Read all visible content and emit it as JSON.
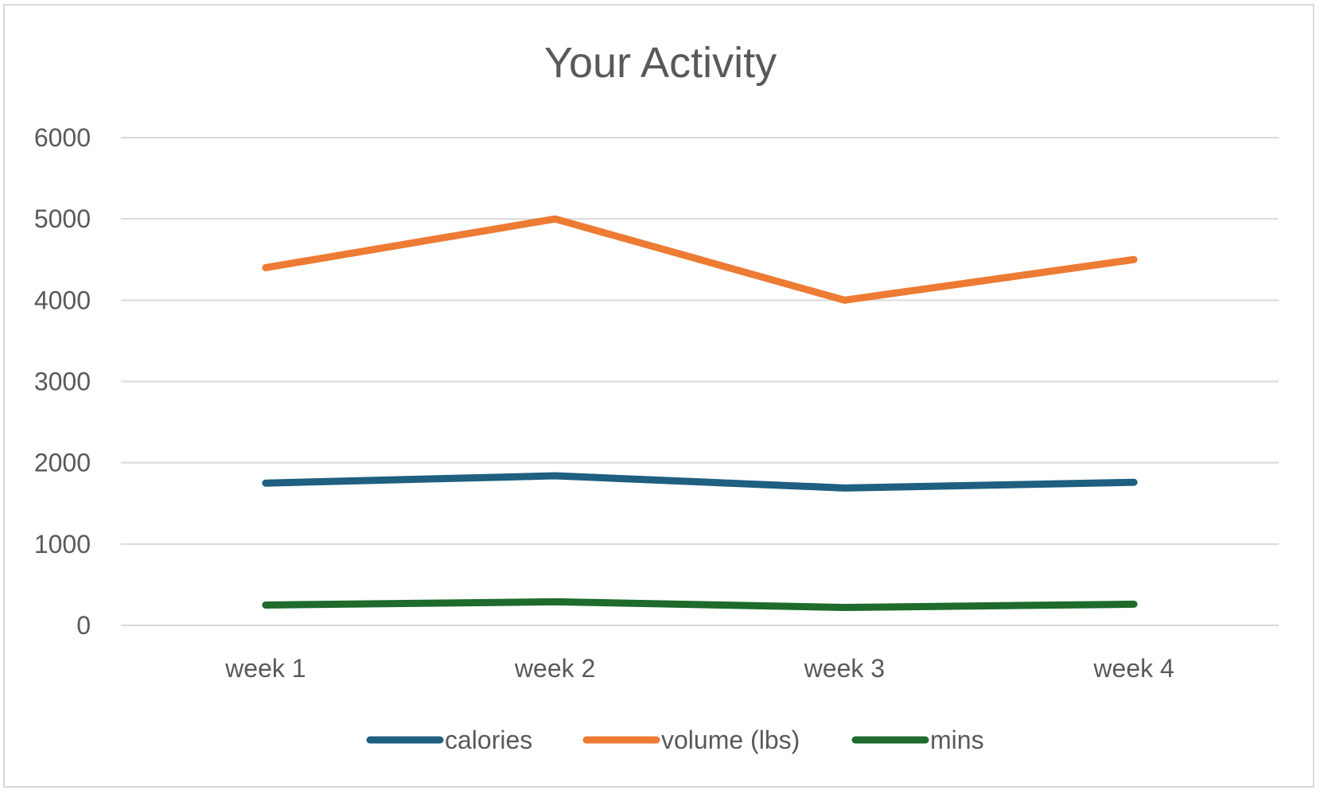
{
  "chart_data": {
    "type": "line",
    "title": "Your Activity",
    "categories": [
      "week 1",
      "week 2",
      "week 3",
      "week 4"
    ],
    "series": [
      {
        "name": "calories",
        "color": "#1F5F7F",
        "values": [
          1750,
          1840,
          1690,
          1760
        ]
      },
      {
        "name": "volume (lbs)",
        "color": "#ED7B34",
        "values": [
          4400,
          5000,
          4000,
          4500
        ]
      },
      {
        "name": "mins",
        "color": "#1E6B2C",
        "values": [
          250,
          290,
          220,
          260
        ]
      }
    ],
    "ylim": [
      0,
      6000
    ],
    "yticks": [
      0,
      1000,
      2000,
      3000,
      4000,
      5000,
      6000
    ],
    "grid": true,
    "legend_position": "bottom"
  }
}
